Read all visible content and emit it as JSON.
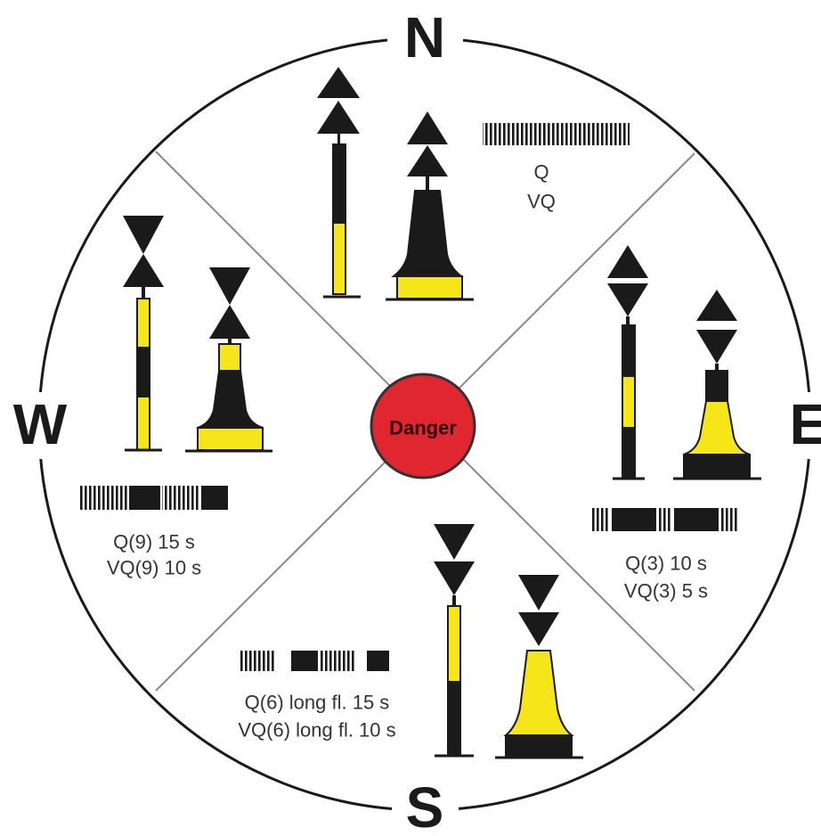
{
  "compass": {
    "north": "N",
    "east": "E",
    "south": "S",
    "west": "W"
  },
  "center": "Danger",
  "quadrants": {
    "north": {
      "lines": [
        "Q",
        "VQ"
      ]
    },
    "east": {
      "lines": [
        "Q(3) 10 s",
        "VQ(3) 5 s"
      ]
    },
    "south": {
      "lines": [
        "Q(6) long fl. 15 s",
        "VQ(6) long fl. 10 s"
      ]
    },
    "west": {
      "lines": [
        "Q(9) 15 s",
        "VQ(9) 10 s"
      ]
    }
  }
}
